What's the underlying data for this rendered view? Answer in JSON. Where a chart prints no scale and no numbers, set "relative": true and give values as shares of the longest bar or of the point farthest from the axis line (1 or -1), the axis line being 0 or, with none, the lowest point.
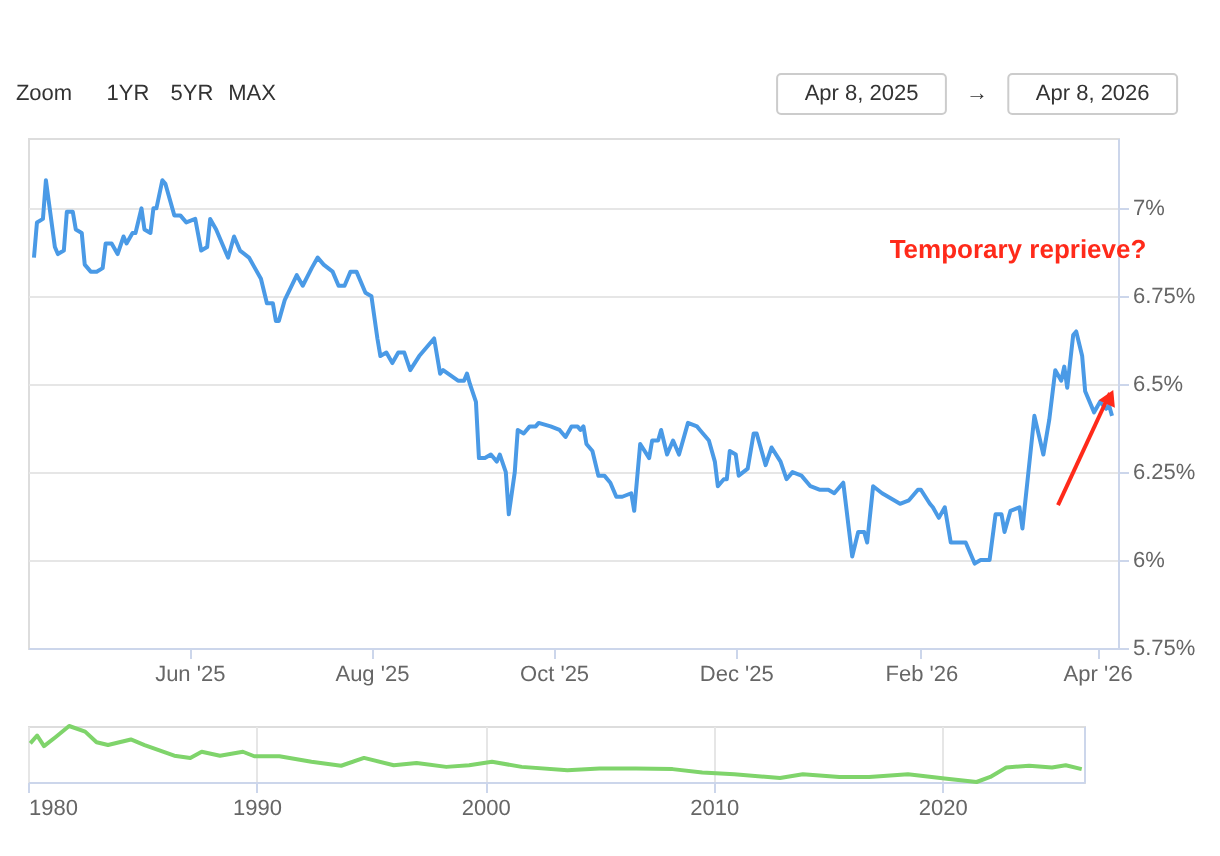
{
  "chart_data": [
    {
      "type": "line",
      "x": [
        "2025-04-10",
        "2025-04-11",
        "2025-04-13",
        "2025-04-14",
        "2025-04-17",
        "2025-04-18",
        "2025-04-20",
        "2025-04-21",
        "2025-04-23",
        "2025-04-24",
        "2025-04-26",
        "2025-04-27",
        "2025-04-29",
        "2025-05-01",
        "2025-05-03",
        "2025-05-04",
        "2025-05-06",
        "2025-05-08",
        "2025-05-10",
        "2025-05-11",
        "2025-05-13",
        "2025-05-14",
        "2025-05-16",
        "2025-05-17",
        "2025-05-19",
        "2025-05-20",
        "2025-05-21",
        "2025-05-23",
        "2025-05-24",
        "2025-05-27",
        "2025-05-29",
        "2025-05-31",
        "2025-06-03",
        "2025-06-05",
        "2025-06-07",
        "2025-06-08",
        "2025-06-10",
        "2025-06-14",
        "2025-06-16",
        "2025-06-18",
        "2025-06-21",
        "2025-06-25",
        "2025-06-27",
        "2025-06-29",
        "2025-06-30",
        "2025-07-01",
        "2025-07-03",
        "2025-07-07",
        "2025-07-09",
        "2025-07-12",
        "2025-07-14",
        "2025-07-16",
        "2025-07-19",
        "2025-07-21",
        "2025-07-23",
        "2025-07-25",
        "2025-07-27",
        "2025-07-30",
        "2025-08-01",
        "2025-08-03",
        "2025-08-04",
        "2025-08-06",
        "2025-08-08",
        "2025-08-10",
        "2025-08-12",
        "2025-08-14",
        "2025-08-17",
        "2025-08-22",
        "2025-08-24",
        "2025-08-25",
        "2025-08-30",
        "2025-09-01",
        "2025-09-02",
        "2025-09-03",
        "2025-09-05",
        "2025-09-06",
        "2025-09-08",
        "2025-09-10",
        "2025-09-12",
        "2025-09-13",
        "2025-09-15",
        "2025-09-16",
        "2025-09-18",
        "2025-09-19",
        "2025-09-21",
        "2025-09-23",
        "2025-09-25",
        "2025-09-26",
        "2025-09-30",
        "2025-10-03",
        "2025-10-05",
        "2025-10-07",
        "2025-10-09",
        "2025-10-10",
        "2025-10-11",
        "2025-10-12",
        "2025-10-14",
        "2025-10-16",
        "2025-10-18",
        "2025-10-20",
        "2025-10-22",
        "2025-10-24",
        "2025-10-27",
        "2025-10-28",
        "2025-10-30",
        "2025-11-02",
        "2025-11-03",
        "2025-11-05",
        "2025-11-06",
        "2025-11-08",
        "2025-11-10",
        "2025-11-12",
        "2025-11-15",
        "2025-11-18",
        "2025-11-19",
        "2025-11-22",
        "2025-11-24",
        "2025-11-25",
        "2025-11-27",
        "2025-11-28",
        "2025-11-29",
        "2025-12-01",
        "2025-12-02",
        "2025-12-05",
        "2025-12-07",
        "2025-12-08",
        "2025-12-11",
        "2025-12-13",
        "2025-12-16",
        "2025-12-18",
        "2025-12-20",
        "2025-12-23",
        "2025-12-26",
        "2025-12-29",
        "2026-01-01",
        "2026-01-03",
        "2026-01-06",
        "2026-01-08",
        "2026-01-09",
        "2026-01-11",
        "2026-01-13",
        "2026-01-14",
        "2026-01-16",
        "2026-01-19",
        "2026-01-23",
        "2026-01-25",
        "2026-01-28",
        "2026-01-31",
        "2026-02-01",
        "2026-02-04",
        "2026-02-05",
        "2026-02-07",
        "2026-02-09",
        "2026-02-11",
        "2026-02-14",
        "2026-02-16",
        "2026-02-19",
        "2026-02-21",
        "2026-02-24",
        "2026-02-26",
        "2026-02-28",
        "2026-03-01",
        "2026-03-03",
        "2026-03-06",
        "2026-03-07",
        "2026-03-09",
        "2026-03-11",
        "2026-03-14",
        "2026-03-16",
        "2026-03-18",
        "2026-03-20",
        "2026-03-21",
        "2026-03-22",
        "2026-03-24",
        "2026-03-25",
        "2026-03-27",
        "2026-03-28",
        "2026-03-31",
        "2026-04-02",
        "2026-04-04",
        "2026-04-05",
        "2026-04-06"
      ],
      "series": [
        {
          "color": "#4a9ae6",
          "values": [
            6.86,
            6.96,
            6.97,
            7.08,
            6.89,
            6.87,
            6.88,
            6.99,
            6.99,
            6.94,
            6.93,
            6.84,
            6.82,
            6.82,
            6.83,
            6.9,
            6.9,
            6.87,
            6.92,
            6.9,
            6.93,
            6.93,
            7.0,
            6.94,
            6.93,
            7.0,
            7.0,
            7.08,
            7.07,
            6.98,
            6.98,
            6.96,
            6.97,
            6.88,
            6.89,
            6.97,
            6.94,
            6.86,
            6.92,
            6.88,
            6.86,
            6.8,
            6.73,
            6.73,
            6.68,
            6.68,
            6.74,
            6.81,
            6.78,
            6.83,
            6.86,
            6.84,
            6.82,
            6.78,
            6.78,
            6.82,
            6.82,
            6.76,
            6.75,
            6.63,
            6.58,
            6.59,
            6.56,
            6.59,
            6.59,
            6.54,
            6.58,
            6.63,
            6.53,
            6.54,
            6.51,
            6.51,
            6.53,
            6.5,
            6.45,
            6.29,
            6.29,
            6.3,
            6.28,
            6.3,
            6.25,
            6.13,
            6.25,
            6.37,
            6.36,
            6.38,
            6.38,
            6.39,
            6.38,
            6.37,
            6.35,
            6.38,
            6.38,
            6.37,
            6.38,
            6.33,
            6.31,
            6.24,
            6.24,
            6.22,
            6.18,
            6.18,
            6.19,
            6.14,
            6.33,
            6.29,
            6.34,
            6.34,
            6.37,
            6.3,
            6.34,
            6.3,
            6.39,
            6.38,
            6.37,
            6.34,
            6.28,
            6.21,
            6.23,
            6.23,
            6.31,
            6.3,
            6.24,
            6.26,
            6.36,
            6.36,
            6.27,
            6.32,
            6.28,
            6.23,
            6.25,
            6.24,
            6.21,
            6.2,
            6.2,
            6.19,
            6.22,
            6.08,
            6.01,
            6.08,
            6.08,
            6.05,
            6.21,
            6.19,
            6.17,
            6.16,
            6.17,
            6.2,
            6.2,
            6.16,
            6.15,
            6.12,
            6.15,
            6.05,
            6.05,
            6.05,
            5.99,
            6.0,
            6.0,
            6.13,
            6.13,
            6.08,
            6.14,
            6.15,
            6.09,
            6.25,
            6.41,
            6.3,
            6.4,
            6.54,
            6.51,
            6.55,
            6.49,
            6.64,
            6.65,
            6.58,
            6.48,
            6.42,
            6.45,
            6.43,
            6.44,
            6.41
          ]
        }
      ],
      "xlim": [
        "2025-04-08",
        "2026-04-08"
      ],
      "xticks": [
        {
          "value": "2025-06-01",
          "label": "Jun '25"
        },
        {
          "value": "2025-08-01",
          "label": "Aug '25"
        },
        {
          "value": "2025-10-01",
          "label": "Oct '25"
        },
        {
          "value": "2025-12-01",
          "label": "Dec '25"
        },
        {
          "value": "2026-02-01",
          "label": "Feb '26"
        },
        {
          "value": "2026-04-01",
          "label": "Apr '26"
        }
      ],
      "ylim": [
        5.75,
        7.2
      ],
      "yticks": [
        {
          "value": 5.75,
          "label": "5.75%"
        },
        {
          "value": 6,
          "label": "6%"
        },
        {
          "value": 6.25,
          "label": "6.25%"
        },
        {
          "value": 6.5,
          "label": "6.5%"
        },
        {
          "value": 6.75,
          "label": "6.75%"
        },
        {
          "value": 7,
          "label": "7%"
        }
      ],
      "grid": "y",
      "annotations": [
        "Zoom",
        "1YR",
        "5YR",
        "MAX",
        "Apr 8, 2025",
        "→",
        "Apr 8, 2026",
        "Temporary reprieve?"
      ]
    },
    {
      "type": "line",
      "relative": true,
      "x": [
        1980.1,
        1980.4,
        1980.7,
        1981.2,
        1981.8,
        1982.5,
        1983,
        1983.5,
        1984.5,
        1985.1,
        1986.4,
        1987.1,
        1987.6,
        1988.4,
        1989.4,
        1989.9,
        1991,
        1992.4,
        1993.7,
        1994.7,
        1996,
        1997,
        1998.3,
        1999.3,
        2000.3,
        2001.6,
        2003.6,
        2005,
        2006.6,
        2008.2,
        2009.5,
        2010.9,
        2012.9,
        2013.9,
        2015.5,
        2016.8,
        2018.5,
        2020.2,
        2021.5,
        2022.1,
        2022.8,
        2023.8,
        2024.8,
        2025.4,
        2026.1
      ],
      "series": [
        {
          "color": "#7fd46b",
          "values": [
            0.69,
            0.83,
            0.64,
            0.8,
            1,
            0.9,
            0.71,
            0.66,
            0.76,
            0.66,
            0.47,
            0.43,
            0.54,
            0.47,
            0.54,
            0.46,
            0.46,
            0.36,
            0.29,
            0.43,
            0.3,
            0.34,
            0.27,
            0.3,
            0.36,
            0.27,
            0.21,
            0.24,
            0.24,
            0.23,
            0.17,
            0.14,
            0.07,
            0.14,
            0.09,
            0.09,
            0.14,
            0.06,
            0,
            0.09,
            0.26,
            0.29,
            0.26,
            0.3,
            0.23
          ]
        }
      ],
      "xlim": [
        1980,
        2026.2
      ],
      "xticks": [
        1980,
        1990,
        2000,
        2010,
        2020
      ],
      "grid": "x"
    }
  ]
}
